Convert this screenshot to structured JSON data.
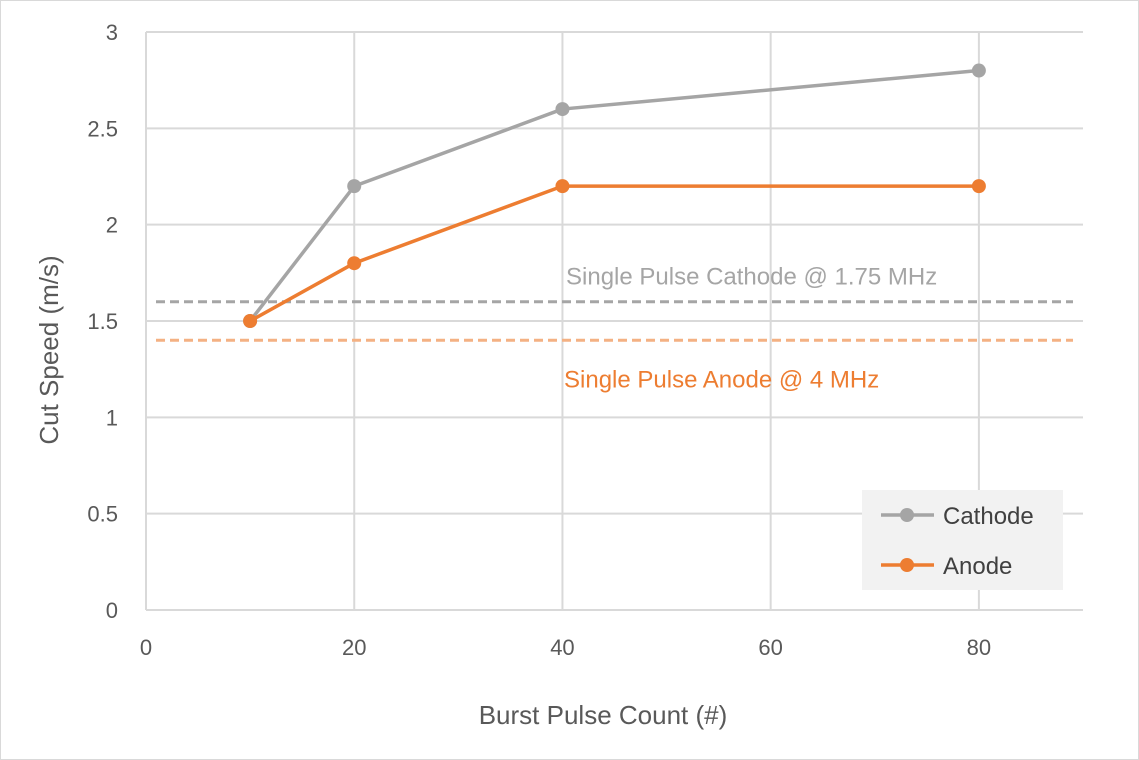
{
  "chart_data": {
    "type": "line",
    "xlabel": "Burst Pulse Count (#)",
    "ylabel": "Cut Speed (m/s)",
    "xlim": [
      0,
      90
    ],
    "ylim": [
      0,
      3
    ],
    "x_ticks": [
      0,
      20,
      40,
      60,
      80
    ],
    "y_ticks": [
      0,
      0.5,
      1,
      1.5,
      2,
      2.5,
      3
    ],
    "x_tick_labels": [
      "0",
      "20",
      "40",
      "60",
      "80"
    ],
    "y_tick_labels": [
      "0",
      "0.5",
      "1",
      "1.5",
      "2",
      "2.5",
      "3"
    ],
    "grid": true,
    "legend_position": "bottom-right",
    "series": [
      {
        "name": "Cathode",
        "color": "#a5a5a5",
        "x": [
          10,
          20,
          40,
          80
        ],
        "y": [
          1.5,
          2.2,
          2.6,
          2.8
        ]
      },
      {
        "name": "Anode",
        "color": "#ed7d31",
        "x": [
          10,
          20,
          40,
          80
        ],
        "y": [
          1.5,
          1.8,
          2.2,
          2.2
        ]
      }
    ],
    "reference_lines": [
      {
        "label": "Single Pulse Cathode @ 1.75 MHz",
        "y": 1.6,
        "color": "#a5a5a5",
        "style": "dashed"
      },
      {
        "label": "Single Pulse Anode @ 4 MHz",
        "y": 1.4,
        "color": "#f4b183",
        "label_color": "#ed7d31",
        "style": "dashed"
      }
    ]
  }
}
